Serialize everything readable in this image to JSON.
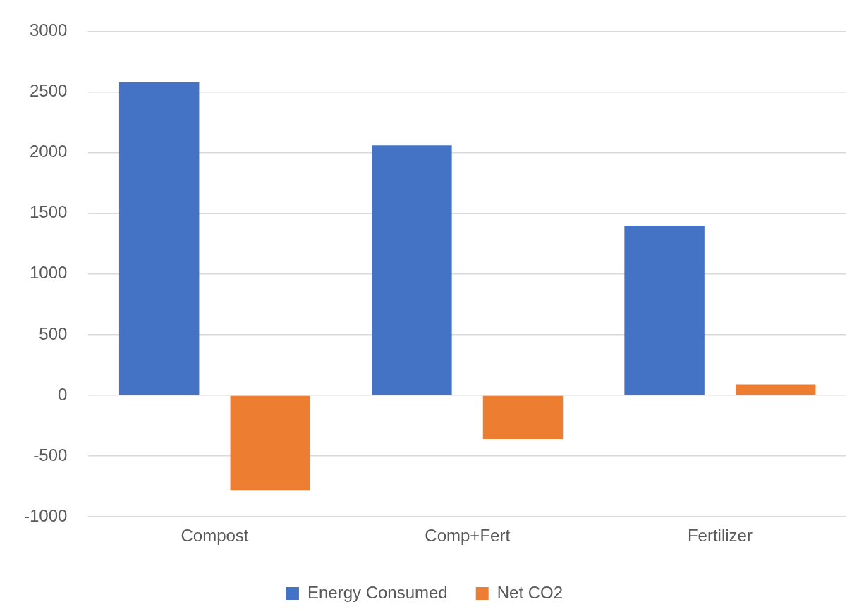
{
  "chart_data": {
    "type": "bar",
    "categories": [
      "Compost",
      "Comp+Fert",
      "Fertilizer"
    ],
    "series": [
      {
        "name": "Energy Consumed",
        "color": "#4472c4",
        "values": [
          2580,
          2060,
          1400
        ]
      },
      {
        "name": "Net CO2",
        "color": "#ed7d31",
        "values": [
          -780,
          -360,
          90
        ]
      }
    ],
    "ylim": [
      -1000,
      3000
    ],
    "yticks": [
      -1000,
      -500,
      0,
      500,
      1000,
      1500,
      2000,
      2500,
      3000
    ],
    "grid": "y",
    "legend": "bottom"
  }
}
